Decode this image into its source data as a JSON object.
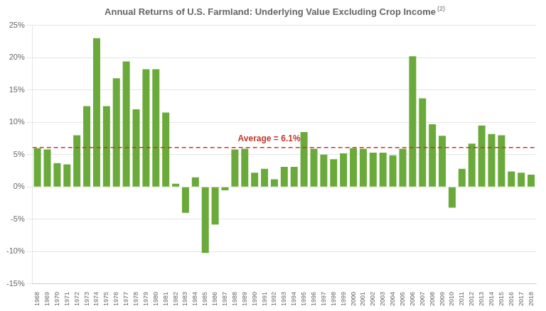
{
  "chart_data": {
    "type": "bar",
    "title": "Annual Returns of U.S. Farmland: Underlying Value Excluding Crop Income",
    "title_superscript": "(2)",
    "categories": [
      "1968",
      "1969",
      "1970",
      "1971",
      "1972",
      "1973",
      "1974",
      "1975",
      "1976",
      "1977",
      "1978",
      "1979",
      "1980",
      "1981",
      "1982",
      "1983",
      "1984",
      "1985",
      "1986",
      "1987",
      "1988",
      "1989",
      "1990",
      "1991",
      "1992",
      "1993",
      "1994",
      "1995",
      "1996",
      "1997",
      "1998",
      "1999",
      "2000",
      "2001",
      "2002",
      "2003",
      "2004",
      "2005",
      "2006",
      "2007",
      "2008",
      "2009",
      "2010",
      "2011",
      "2012",
      "2013",
      "2014",
      "2015",
      "2016",
      "2017",
      "2018"
    ],
    "values": [
      6.0,
      5.8,
      3.7,
      3.5,
      8.0,
      12.5,
      23.0,
      12.5,
      16.8,
      19.4,
      12.0,
      18.2,
      18.2,
      11.5,
      0.5,
      -4.0,
      1.5,
      -10.2,
      -5.8,
      -0.5,
      5.8,
      5.9,
      2.2,
      2.8,
      1.2,
      3.1,
      3.1,
      8.5,
      5.9,
      5.0,
      4.3,
      5.2,
      6.0,
      5.9,
      5.3,
      5.3,
      4.9,
      5.9,
      20.2,
      13.7,
      9.7,
      7.9,
      -3.2,
      2.8,
      6.7,
      9.5,
      8.2,
      8.0,
      2.4,
      2.2,
      1.9
    ],
    "color": "#6aaa3a",
    "average": {
      "value": 6.1,
      "label": "Average = 6.1%",
      "color": "#c0392b",
      "line_style": "dashed"
    },
    "ylim": [
      -15,
      25
    ],
    "yticks": [
      {
        "value": -15,
        "label": "-15%"
      },
      {
        "value": -10,
        "label": "-10%"
      },
      {
        "value": -5,
        "label": "-5%"
      },
      {
        "value": 0,
        "label": "0%"
      },
      {
        "value": 5,
        "label": "5%"
      },
      {
        "value": 10,
        "label": "10%"
      },
      {
        "value": 15,
        "label": "15%"
      },
      {
        "value": 20,
        "label": "20%"
      },
      {
        "value": 25,
        "label": "25%"
      }
    ],
    "grid": true
  }
}
